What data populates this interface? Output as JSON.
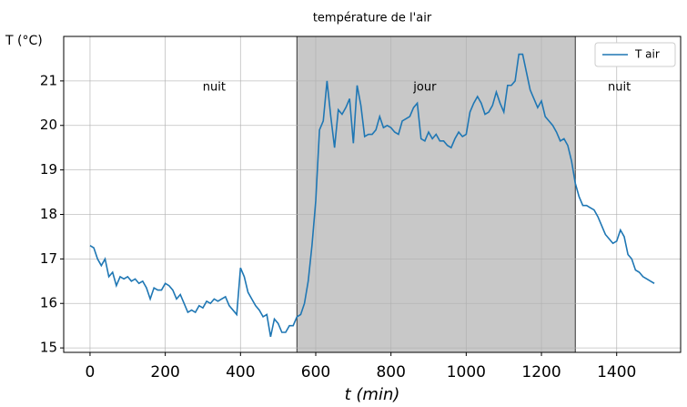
{
  "chart_data": {
    "type": "line",
    "title": "température de l'air",
    "x_label": "t (min)",
    "y_label": "T (°C)",
    "x": [
      0,
      10,
      20,
      30,
      40,
      50,
      60,
      70,
      80,
      90,
      100,
      110,
      120,
      130,
      140,
      150,
      160,
      170,
      180,
      190,
      200,
      210,
      220,
      230,
      240,
      250,
      260,
      270,
      280,
      290,
      300,
      310,
      320,
      330,
      340,
      350,
      360,
      370,
      380,
      390,
      400,
      410,
      420,
      430,
      440,
      450,
      460,
      470,
      480,
      490,
      500,
      510,
      520,
      530,
      540,
      550,
      560,
      570,
      580,
      590,
      600,
      610,
      620,
      630,
      640,
      650,
      660,
      670,
      680,
      690,
      700,
      710,
      720,
      730,
      740,
      750,
      760,
      770,
      780,
      790,
      800,
      810,
      820,
      830,
      840,
      850,
      860,
      870,
      880,
      890,
      900,
      910,
      920,
      930,
      940,
      950,
      960,
      970,
      980,
      990,
      1000,
      1010,
      1020,
      1030,
      1040,
      1050,
      1060,
      1070,
      1080,
      1090,
      1100,
      1110,
      1120,
      1130,
      1140,
      1150,
      1160,
      1170,
      1180,
      1190,
      1200,
      1210,
      1220,
      1230,
      1240,
      1250,
      1260,
      1270,
      1280,
      1290,
      1300,
      1310,
      1320,
      1330,
      1340,
      1350,
      1360,
      1370,
      1380,
      1390,
      1400,
      1410,
      1420,
      1430,
      1440,
      1450,
      1460,
      1470,
      1480,
      1490,
      1500
    ],
    "series": [
      {
        "name": "T air",
        "color": "#1f77b4",
        "values": [
          17.3,
          17.25,
          17.0,
          16.85,
          17.0,
          16.6,
          16.7,
          16.4,
          16.6,
          16.55,
          16.6,
          16.5,
          16.55,
          16.45,
          16.5,
          16.35,
          16.1,
          16.35,
          16.3,
          16.3,
          16.45,
          16.4,
          16.3,
          16.1,
          16.2,
          16.0,
          15.8,
          15.85,
          15.8,
          15.95,
          15.9,
          16.05,
          16.0,
          16.1,
          16.05,
          16.1,
          16.15,
          15.95,
          15.85,
          15.75,
          16.8,
          16.6,
          16.25,
          16.1,
          15.95,
          15.85,
          15.7,
          15.75,
          15.25,
          15.65,
          15.55,
          15.35,
          15.35,
          15.5,
          15.5,
          15.7,
          15.75,
          16.0,
          16.5,
          17.3,
          18.3,
          19.9,
          20.1,
          21.0,
          20.2,
          19.5,
          20.35,
          20.25,
          20.4,
          20.6,
          19.6,
          20.9,
          20.45,
          19.75,
          19.8,
          19.8,
          19.9,
          20.2,
          19.95,
          20.0,
          19.95,
          19.85,
          19.8,
          20.1,
          20.15,
          20.2,
          20.4,
          20.5,
          19.7,
          19.65,
          19.85,
          19.7,
          19.8,
          19.65,
          19.65,
          19.55,
          19.5,
          19.7,
          19.85,
          19.75,
          19.8,
          20.3,
          20.5,
          20.65,
          20.5,
          20.25,
          20.3,
          20.45,
          20.75,
          20.5,
          20.3,
          20.9,
          20.9,
          21.0,
          21.6,
          21.6,
          21.2,
          20.8,
          20.6,
          20.4,
          20.55,
          20.2,
          20.1,
          20.0,
          19.85,
          19.65,
          19.7,
          19.55,
          19.2,
          18.7,
          18.4,
          18.2,
          18.2,
          18.15,
          18.1,
          17.95,
          17.75,
          17.55,
          17.45,
          17.35,
          17.4,
          17.65,
          17.5,
          17.1,
          17.0,
          16.75,
          16.7,
          16.6,
          16.55,
          16.5,
          16.45
        ]
      }
    ],
    "xlim": [
      -70,
      1570
    ],
    "ylim": [
      14.9,
      22.0
    ],
    "xticks": [
      0,
      200,
      400,
      600,
      800,
      1000,
      1200,
      1400
    ],
    "yticks": [
      15,
      16,
      17,
      18,
      19,
      20,
      21
    ],
    "grid": true,
    "legend_position": "upper right",
    "shaded_region": {
      "x": [
        550,
        1290
      ],
      "color": "#c8c8c8"
    },
    "annotations": [
      {
        "text": "nuit",
        "x": 330,
        "y": 20.85
      },
      {
        "text": "jour",
        "x": 890,
        "y": 20.85
      },
      {
        "text": "nuit",
        "x": 1407,
        "y": 20.85
      }
    ]
  }
}
